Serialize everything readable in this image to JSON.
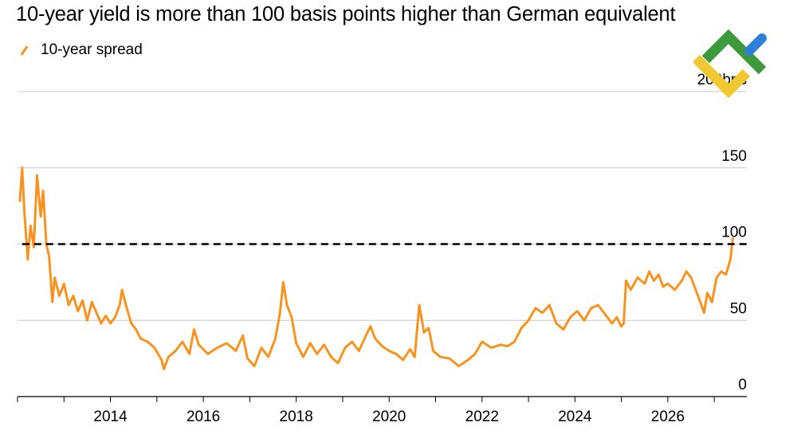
{
  "header": {
    "title": "10-year yield is more than 100 basis points higher than German equivalent",
    "legend_label": "10-year spread"
  },
  "chart_data": {
    "type": "line",
    "title": "10-year yield is more than 100 basis points higher than German equivalent",
    "xlabel": "",
    "ylabel": "",
    "xlim": [
      2012.0,
      2027.7
    ],
    "ylim": [
      0,
      200
    ],
    "y_ticks": [
      {
        "value": 200,
        "label": "200bps"
      },
      {
        "value": 150,
        "label": "150"
      },
      {
        "value": 100,
        "label": "100"
      },
      {
        "value": 50,
        "label": "50"
      },
      {
        "value": 0,
        "label": "0"
      }
    ],
    "x_ticks": [
      2014,
      2016,
      2018,
      2020,
      2022,
      2024,
      2026
    ],
    "reference_line": {
      "value": 100,
      "style": "dashed",
      "color": "#000000"
    },
    "series": [
      {
        "name": "10-year spread",
        "color": "#f7931e",
        "points": [
          [
            2012.05,
            128
          ],
          [
            2012.1,
            150
          ],
          [
            2012.15,
            120
          ],
          [
            2012.22,
            90
          ],
          [
            2012.28,
            112
          ],
          [
            2012.35,
            98
          ],
          [
            2012.42,
            145
          ],
          [
            2012.5,
            118
          ],
          [
            2012.55,
            135
          ],
          [
            2012.62,
            100
          ],
          [
            2012.68,
            92
          ],
          [
            2012.75,
            62
          ],
          [
            2012.8,
            78
          ],
          [
            2012.9,
            66
          ],
          [
            2013.0,
            74
          ],
          [
            2013.1,
            60
          ],
          [
            2013.2,
            66
          ],
          [
            2013.3,
            56
          ],
          [
            2013.4,
            63
          ],
          [
            2013.5,
            50
          ],
          [
            2013.6,
            62
          ],
          [
            2013.7,
            55
          ],
          [
            2013.8,
            48
          ],
          [
            2013.9,
            53
          ],
          [
            2014.0,
            48
          ],
          [
            2014.1,
            52
          ],
          [
            2014.2,
            60
          ],
          [
            2014.25,
            70
          ],
          [
            2014.35,
            58
          ],
          [
            2014.45,
            48
          ],
          [
            2014.55,
            44
          ],
          [
            2014.65,
            38
          ],
          [
            2014.8,
            36
          ],
          [
            2014.95,
            32
          ],
          [
            2015.1,
            24
          ],
          [
            2015.15,
            18
          ],
          [
            2015.25,
            26
          ],
          [
            2015.4,
            30
          ],
          [
            2015.55,
            36
          ],
          [
            2015.7,
            28
          ],
          [
            2015.8,
            44
          ],
          [
            2015.9,
            34
          ],
          [
            2016.1,
            28
          ],
          [
            2016.3,
            32
          ],
          [
            2016.5,
            35
          ],
          [
            2016.7,
            30
          ],
          [
            2016.85,
            40
          ],
          [
            2016.95,
            25
          ],
          [
            2017.1,
            20
          ],
          [
            2017.25,
            32
          ],
          [
            2017.4,
            26
          ],
          [
            2017.55,
            38
          ],
          [
            2017.65,
            55
          ],
          [
            2017.72,
            75
          ],
          [
            2017.8,
            60
          ],
          [
            2017.9,
            52
          ],
          [
            2018.0,
            35
          ],
          [
            2018.15,
            26
          ],
          [
            2018.3,
            35
          ],
          [
            2018.45,
            28
          ],
          [
            2018.6,
            34
          ],
          [
            2018.75,
            26
          ],
          [
            2018.9,
            22
          ],
          [
            2019.05,
            32
          ],
          [
            2019.2,
            36
          ],
          [
            2019.35,
            30
          ],
          [
            2019.5,
            40
          ],
          [
            2019.6,
            46
          ],
          [
            2019.7,
            38
          ],
          [
            2019.85,
            33
          ],
          [
            2020.0,
            30
          ],
          [
            2020.15,
            28
          ],
          [
            2020.3,
            24
          ],
          [
            2020.45,
            31
          ],
          [
            2020.55,
            26
          ],
          [
            2020.65,
            60
          ],
          [
            2020.75,
            42
          ],
          [
            2020.85,
            45
          ],
          [
            2020.95,
            30
          ],
          [
            2021.1,
            26
          ],
          [
            2021.3,
            25
          ],
          [
            2021.5,
            20
          ],
          [
            2021.7,
            24
          ],
          [
            2021.85,
            28
          ],
          [
            2022.0,
            36
          ],
          [
            2022.2,
            32
          ],
          [
            2022.4,
            34
          ],
          [
            2022.55,
            33
          ],
          [
            2022.7,
            36
          ],
          [
            2022.85,
            45
          ],
          [
            2023.0,
            50
          ],
          [
            2023.15,
            58
          ],
          [
            2023.3,
            55
          ],
          [
            2023.45,
            60
          ],
          [
            2023.6,
            48
          ],
          [
            2023.75,
            44
          ],
          [
            2023.9,
            52
          ],
          [
            2024.05,
            56
          ],
          [
            2024.2,
            50
          ],
          [
            2024.35,
            58
          ],
          [
            2024.5,
            60
          ],
          [
            2024.65,
            54
          ],
          [
            2024.8,
            48
          ],
          [
            2024.9,
            52
          ],
          [
            2025.0,
            46
          ],
          [
            2025.05,
            48
          ],
          [
            2025.1,
            76
          ],
          [
            2025.2,
            70
          ],
          [
            2025.35,
            78
          ],
          [
            2025.5,
            74
          ],
          [
            2025.6,
            82
          ],
          [
            2025.7,
            76
          ],
          [
            2025.8,
            80
          ],
          [
            2025.9,
            72
          ],
          [
            2026.0,
            74
          ],
          [
            2026.15,
            70
          ],
          [
            2026.3,
            76
          ],
          [
            2026.4,
            82
          ],
          [
            2026.5,
            78
          ],
          [
            2026.6,
            70
          ],
          [
            2026.7,
            62
          ],
          [
            2026.78,
            55
          ],
          [
            2026.85,
            68
          ],
          [
            2026.95,
            62
          ],
          [
            2027.05,
            78
          ],
          [
            2027.15,
            82
          ],
          [
            2027.25,
            80
          ],
          [
            2027.35,
            90
          ],
          [
            2027.4,
            104
          ]
        ]
      }
    ]
  },
  "watermark": {
    "colors": {
      "green": "#3c9a3c",
      "blue": "#2f7fd9",
      "yellow": "#f2c832"
    }
  }
}
